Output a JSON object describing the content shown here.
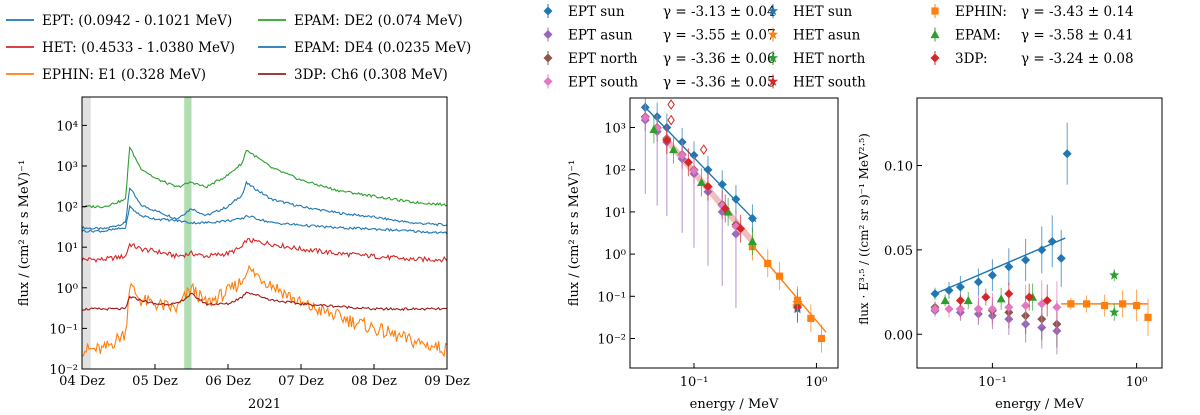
{
  "chart_data": [
    {
      "type": "line",
      "panel": "time-series",
      "title": "",
      "xlabel": "2021",
      "ylabel": "flux / (cm² sr s MeV)⁻¹",
      "yscale": "log",
      "ylim": [
        0.01,
        50000
      ],
      "xlim": [
        0,
        5
      ],
      "x_ticks": [
        "04 Dez",
        "05 Dez",
        "06 Dez",
        "07 Dez",
        "08 Dez",
        "09 Dez"
      ],
      "y_ticks": [
        "10⁻²",
        "10⁻¹",
        "10⁰",
        "10¹",
        "10²",
        "10³",
        "10⁴"
      ],
      "shaded_regions": [
        {
          "name": "pre-event",
          "x": [
            0,
            0.12
          ],
          "color": "#d9d9d9"
        },
        {
          "name": "fit window",
          "x": [
            1.4,
            1.5
          ],
          "color": "#9fd49f"
        }
      ],
      "x": [
        0,
        0.3,
        0.6,
        0.65,
        0.8,
        1.0,
        1.3,
        1.5,
        1.7,
        2.0,
        2.2,
        2.25,
        2.6,
        3.0,
        3.5,
        4.0,
        4.5,
        5.0
      ],
      "series": [
        {
          "name": "EPT: (0.0942 - 0.1021 MeV)",
          "color": "#1f77b4",
          "values": [
            30,
            28,
            40,
            300,
            110,
            80,
            50,
            90,
            60,
            100,
            200,
            380,
            150,
            100,
            70,
            55,
            40,
            35
          ]
        },
        {
          "name": "HET: (0.4533 - 1.0380 MeV)",
          "color": "#d62728",
          "values": [
            5,
            5,
            6,
            12,
            9,
            8,
            6,
            7,
            6,
            7,
            10,
            15,
            12,
            9,
            7,
            6,
            5,
            5
          ]
        },
        {
          "name": "EPHIN: E1 (0.328 MeV)",
          "color": "#ff7f0e",
          "values": [
            0.03,
            0.03,
            0.08,
            1.2,
            0.5,
            0.4,
            0.3,
            1.0,
            0.4,
            0.8,
            1.5,
            3.0,
            1.2,
            0.4,
            0.2,
            0.1,
            0.05,
            0.03
          ]
        },
        {
          "name": "EPAM: DE2 (0.074 MeV)",
          "color": "#2ca02c",
          "values": [
            100,
            100,
            150,
            3000,
            900,
            500,
            300,
            400,
            300,
            600,
            1200,
            2500,
            900,
            450,
            250,
            180,
            130,
            110
          ]
        },
        {
          "name": "EPAM: DE4 (0.0235 MeV)",
          "color": "#1f77b4",
          "values": [
            25,
            25,
            30,
            100,
            60,
            50,
            45,
            40,
            40,
            45,
            50,
            60,
            40,
            35,
            30,
            28,
            25,
            22
          ]
        },
        {
          "name": "3DP: Ch6 (0.308 MeV)",
          "color": "#9e1b1b",
          "values": [
            0.3,
            0.3,
            0.3,
            0.6,
            0.5,
            0.4,
            0.4,
            0.7,
            0.4,
            0.4,
            0.6,
            0.8,
            0.5,
            0.4,
            0.35,
            0.3,
            0.3,
            0.3
          ]
        }
      ]
    },
    {
      "type": "scatter",
      "panel": "spectrum",
      "xlabel": "energy / MeV",
      "ylabel": "flux / (cm² sr s MeV)⁻¹",
      "xscale": "log",
      "yscale": "log",
      "xlim": [
        0.03,
        1.5
      ],
      "ylim": [
        0.002,
        5000
      ],
      "x_ticks": [
        "10⁻¹",
        "10⁰"
      ],
      "y_ticks": [
        "10⁻²",
        "10⁻¹",
        "10⁰",
        "10¹",
        "10²",
        "10³"
      ],
      "series": [
        {
          "name": "EPT sun",
          "gamma": "γ = -3.13 ± 0.04",
          "color": "#1f77b4",
          "marker": "diamond",
          "x": [
            0.04,
            0.05,
            0.06,
            0.08,
            0.1,
            0.13,
            0.17,
            0.22,
            0.3
          ],
          "values": [
            3000,
            1800,
            1000,
            450,
            220,
            100,
            45,
            20,
            7
          ]
        },
        {
          "name": "EPT asun",
          "gamma": "γ = -3.55 ± 0.07",
          "color": "#9467bd",
          "marker": "diamond",
          "x": [
            0.04,
            0.05,
            0.06,
            0.08,
            0.1,
            0.13,
            0.17,
            0.22
          ],
          "values": [
            1500,
            800,
            450,
            180,
            80,
            30,
            10,
            3
          ]
        },
        {
          "name": "EPT north",
          "gamma": "γ = -3.36 ± 0.06",
          "color": "#8c564b",
          "marker": "diamond",
          "x": [
            0.04,
            0.05,
            0.06,
            0.08,
            0.1,
            0.13,
            0.17,
            0.22
          ],
          "values": [
            1800,
            1000,
            550,
            230,
            100,
            40,
            15,
            5
          ]
        },
        {
          "name": "EPT south",
          "gamma": "γ = -3.36 ± 0.05",
          "color": "#e377c2",
          "marker": "diamond",
          "x": [
            0.04,
            0.05,
            0.06,
            0.08,
            0.1,
            0.13,
            0.17,
            0.22
          ],
          "values": [
            1700,
            950,
            520,
            220,
            95,
            38,
            14,
            4.5
          ]
        },
        {
          "name": "HET sun",
          "gamma": "",
          "color": "#1f77b4",
          "marker": "star",
          "x": [
            0.7
          ],
          "values": [
            0.05
          ]
        },
        {
          "name": "HET asun",
          "gamma": "",
          "color": "#ff7f0e",
          "marker": "star",
          "x": [
            0.7
          ],
          "values": [
            0.06
          ]
        },
        {
          "name": "HET north",
          "gamma": "",
          "color": "#2ca02c",
          "marker": "star",
          "x": [
            0.7
          ],
          "values": [
            0.07
          ]
        },
        {
          "name": "HET south",
          "gamma": "",
          "color": "#d62728",
          "marker": "star",
          "x": [
            0.7
          ],
          "values": [
            0.055
          ]
        },
        {
          "name": "EPHIN:",
          "gamma": "γ = -3.43 ± 0.14",
          "color": "#ff7f0e",
          "marker": "square",
          "x": [
            0.3,
            0.4,
            0.5,
            0.7,
            0.9,
            1.1
          ],
          "values": [
            1.5,
            0.6,
            0.3,
            0.08,
            0.03,
            0.01
          ]
        },
        {
          "name": "EPAM:",
          "gamma": "γ = -3.58 ± 0.41",
          "color": "#2ca02c",
          "marker": "triangle",
          "x": [
            0.047,
            0.068,
            0.115,
            0.19,
            0.3
          ],
          "values": [
            900,
            300,
            50,
            10,
            2
          ]
        },
        {
          "name": "3DP:",
          "gamma": "γ = -3.24 ± 0.08",
          "color": "#d62728",
          "marker": "diamond",
          "x": [
            0.06,
            0.09,
            0.13,
            0.18,
            0.24
          ],
          "values": [
            500,
            150,
            40,
            12,
            4
          ]
        }
      ],
      "outliers": [
        {
          "x": 0.065,
          "values": [
            1500,
            3500
          ],
          "color": "#d62728",
          "marker": "open-diamond"
        },
        {
          "x": 0.12,
          "values": [
            300
          ],
          "color": "#d62728",
          "marker": "open-diamond"
        }
      ],
      "fit_lines": [
        {
          "name": "EPT sun fit",
          "color": "#1f77b4",
          "x": [
            0.04,
            0.32
          ],
          "values": [
            3000,
            5.9
          ]
        },
        {
          "name": "EPHIN fit",
          "color": "#ff7f0e",
          "x": [
            0.3,
            1.2
          ],
          "values": [
            1.6,
            0.014
          ]
        },
        {
          "name": "3DP band",
          "color": "#d62728",
          "x": [
            0.06,
            0.3
          ],
          "values": [
            500,
            2
          ]
        }
      ]
    },
    {
      "type": "scatter",
      "panel": "compensated-spectrum",
      "xlabel": "energy / MeV",
      "ylabel": "flux · E³·⁵ / ((cm² sr s)⁻¹ MeV²·⁵)",
      "xscale": "log",
      "yscale": "linear",
      "xlim": [
        0.03,
        1.5
      ],
      "ylim": [
        -0.02,
        0.14
      ],
      "x_ticks": [
        "10⁻¹",
        "10⁰"
      ],
      "y_ticks": [
        "0.00",
        "0.05",
        "0.10"
      ],
      "series": [
        {
          "name": "EPT sun",
          "color": "#1f77b4",
          "marker": "diamond",
          "x": [
            0.04,
            0.05,
            0.06,
            0.08,
            0.1,
            0.13,
            0.17,
            0.22,
            0.26,
            0.3,
            0.33
          ],
          "values": [
            0.024,
            0.026,
            0.028,
            0.031,
            0.035,
            0.04,
            0.044,
            0.05,
            0.055,
            0.045,
            0.107
          ]
        },
        {
          "name": "EPT asun",
          "color": "#9467bd",
          "marker": "diamond",
          "x": [
            0.04,
            0.06,
            0.08,
            0.1,
            0.13,
            0.17,
            0.22,
            0.28
          ],
          "values": [
            0.014,
            0.013,
            0.012,
            0.011,
            0.009,
            0.006,
            0.004,
            0.002
          ]
        },
        {
          "name": "EPT north",
          "color": "#8c564b",
          "marker": "diamond",
          "x": [
            0.04,
            0.06,
            0.08,
            0.1,
            0.13,
            0.17,
            0.22,
            0.28
          ],
          "values": [
            0.016,
            0.015,
            0.015,
            0.014,
            0.013,
            0.011,
            0.009,
            0.006
          ]
        },
        {
          "name": "EPT south",
          "color": "#e377c2",
          "marker": "diamond",
          "x": [
            0.04,
            0.05,
            0.06,
            0.08,
            0.1,
            0.13,
            0.17,
            0.22,
            0.28
          ],
          "values": [
            0.015,
            0.015,
            0.015,
            0.015,
            0.015,
            0.016,
            0.017,
            0.018,
            0.016
          ]
        },
        {
          "name": "HET",
          "color": "#2ca02c",
          "marker": "star",
          "x": [
            0.7,
            0.7
          ],
          "values": [
            0.035,
            0.013
          ]
        },
        {
          "name": "EPHIN",
          "color": "#ff7f0e",
          "marker": "square",
          "x": [
            0.35,
            0.45,
            0.6,
            0.8,
            1.0,
            1.2
          ],
          "values": [
            0.018,
            0.018,
            0.017,
            0.018,
            0.017,
            0.01
          ]
        },
        {
          "name": "EPAM",
          "color": "#2ca02c",
          "marker": "triangle",
          "x": [
            0.047,
            0.068,
            0.115,
            0.19
          ],
          "values": [
            0.02,
            0.02,
            0.021,
            0.022
          ]
        },
        {
          "name": "3DP",
          "color": "#d62728",
          "marker": "diamond",
          "x": [
            0.06,
            0.09,
            0.13,
            0.18,
            0.24
          ],
          "values": [
            0.02,
            0.022,
            0.024,
            0.022,
            0.02
          ]
        }
      ],
      "fit_lines": [
        {
          "name": "EPT sun fit",
          "color": "#1f77b4",
          "x": [
            0.04,
            0.32
          ],
          "values": [
            0.024,
            0.057
          ]
        },
        {
          "name": "EPHIN fit",
          "color": "#ff7f0e",
          "x": [
            0.3,
            1.2
          ],
          "values": [
            0.018,
            0.018
          ]
        }
      ]
    }
  ]
}
